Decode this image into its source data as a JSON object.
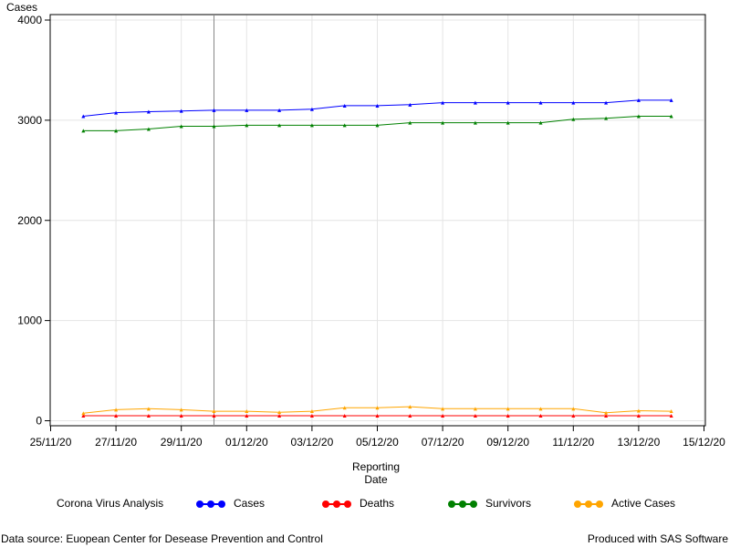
{
  "chart_data": {
    "type": "line",
    "ylabel": "Cases",
    "xlabel_line1": "Reporting",
    "xlabel_line2": "Date",
    "x": [
      "26/11/20",
      "27/11/20",
      "28/11/20",
      "29/11/20",
      "30/11/20",
      "01/12/20",
      "02/12/20",
      "03/12/20",
      "04/12/20",
      "05/12/20",
      "06/12/20",
      "07/12/20",
      "08/12/20",
      "09/12/20",
      "10/12/20",
      "11/12/20",
      "12/12/20",
      "13/12/20",
      "14/12/20"
    ],
    "x_ticks": [
      "25/11/20",
      "27/11/20",
      "29/11/20",
      "01/12/20",
      "03/12/20",
      "05/12/20",
      "07/12/20",
      "09/12/20",
      "11/12/20",
      "13/12/20",
      "15/12/20"
    ],
    "y_ticks": [
      "0",
      "1000",
      "2000",
      "3000",
      "4000"
    ],
    "ylim": [
      0,
      4000
    ],
    "grid": true,
    "reference_line_x": "30/11/20",
    "series": [
      {
        "name": "Cases",
        "color": "#0000ff",
        "values": [
          3040,
          3075,
          3085,
          3093,
          3100,
          3100,
          3100,
          3110,
          3145,
          3145,
          3155,
          3175,
          3175,
          3175,
          3175,
          3175,
          3175,
          3200,
          3200
        ]
      },
      {
        "name": "Deaths",
        "color": "#ff0000",
        "values": [
          50,
          50,
          50,
          50,
          50,
          50,
          50,
          50,
          50,
          50,
          50,
          50,
          50,
          50,
          50,
          50,
          50,
          50,
          50
        ]
      },
      {
        "name": "Survivors",
        "color": "#008000",
        "values": [
          2895,
          2895,
          2912,
          2940,
          2940,
          2950,
          2950,
          2950,
          2950,
          2950,
          2975,
          2975,
          2975,
          2975,
          2975,
          3010,
          3020,
          3040,
          3040
        ]
      },
      {
        "name": "Active Cases",
        "color": "#ffa500",
        "values": [
          75,
          110,
          120,
          110,
          95,
          95,
          85,
          95,
          130,
          130,
          140,
          120,
          120,
          120,
          120,
          120,
          80,
          100,
          95
        ]
      }
    ]
  },
  "legend": {
    "title": "Corona Virus Analysis",
    "items": [
      {
        "label": "Cases",
        "color": "#0000ff"
      },
      {
        "label": "Deaths",
        "color": "#ff0000"
      },
      {
        "label": "Survivors",
        "color": "#008000"
      },
      {
        "label": "Active Cases",
        "color": "#ffa500"
      }
    ]
  },
  "footnote": {
    "left": "Data source: Euopean Center for Desease Prevention and Control",
    "right": "Produced with SAS Software"
  }
}
